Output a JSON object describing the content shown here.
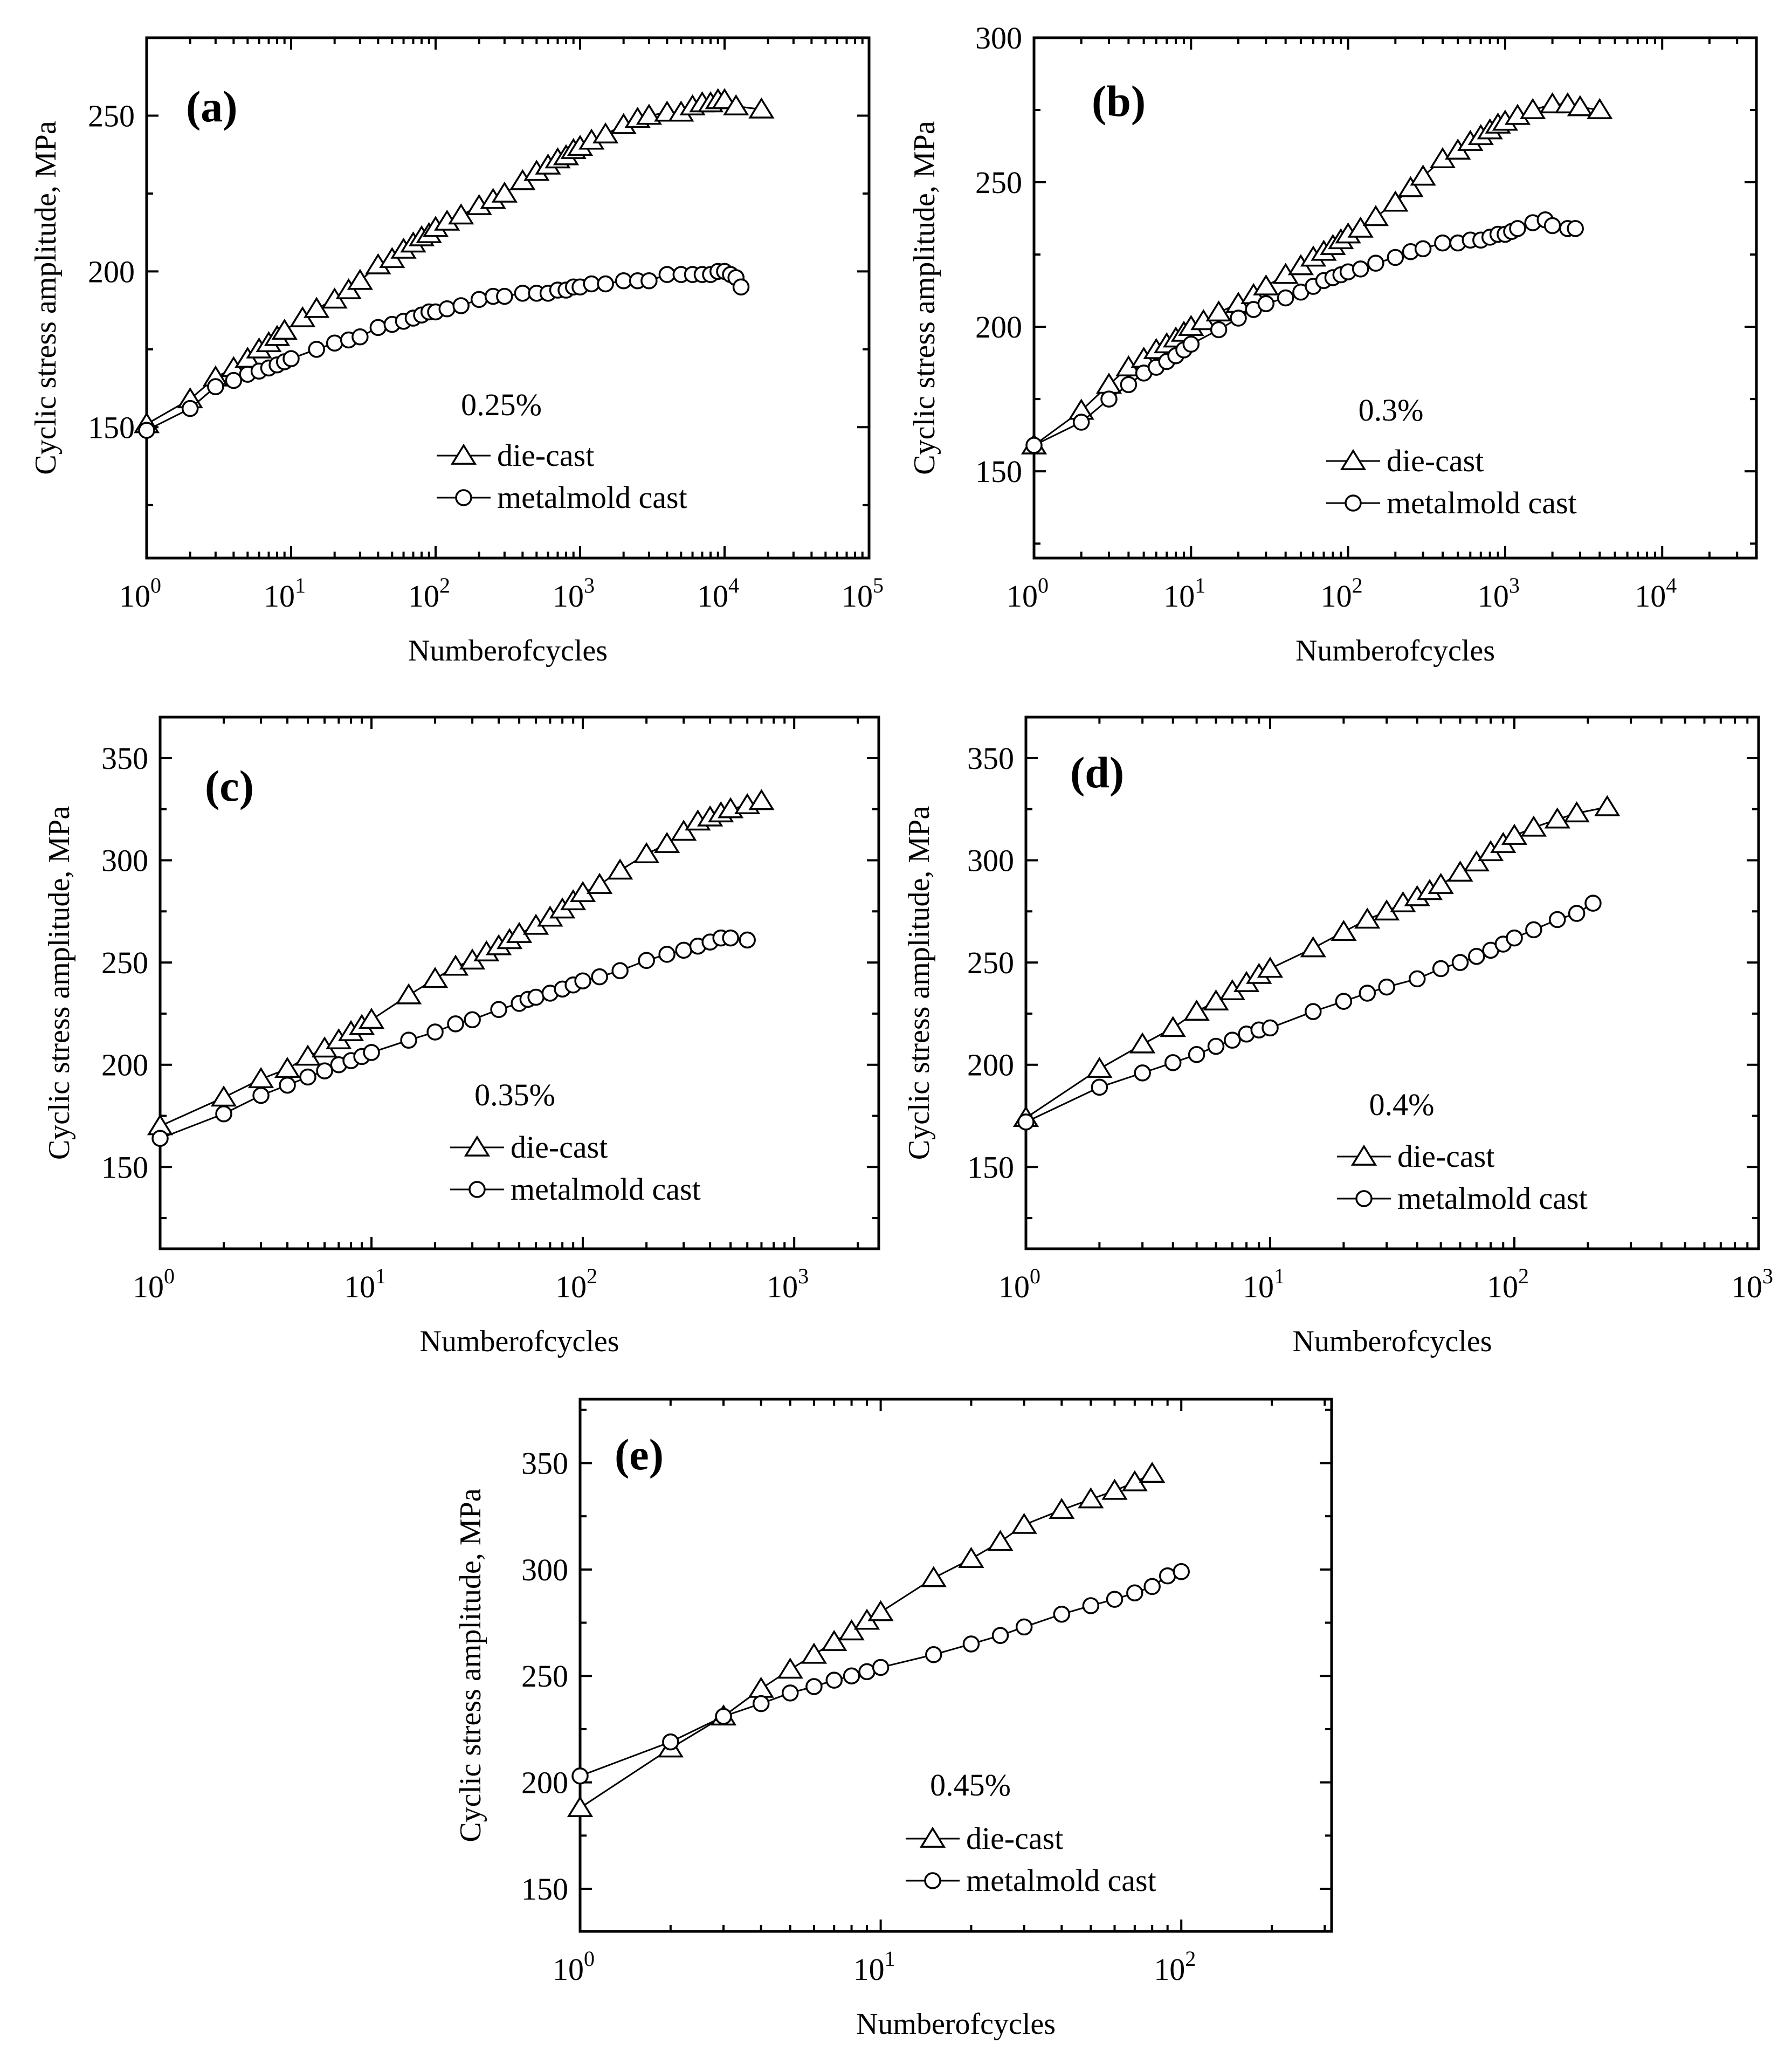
{
  "figure": {
    "panels": [
      {
        "label": "(a)",
        "strain": "0.25%",
        "ylabel": "Cyclic stress amplitude, MPa",
        "xlabel": "Numberofcycles",
        "yticks": [
          150,
          200,
          250
        ],
        "xticks": [
          0,
          1,
          2,
          3,
          4,
          5
        ],
        "xlim": [
          0,
          5
        ],
        "ylim": [
          108,
          275
        ]
      },
      {
        "label": "(b)",
        "strain": "0.3%",
        "ylabel": "Cyclic stress amplitude, MPa",
        "xlabel": "Numberofcycles",
        "yticks": [
          150,
          200,
          250,
          300
        ],
        "xticks": [
          0,
          1,
          2,
          3,
          4
        ],
        "xlim": [
          0,
          4.6
        ],
        "ylim": [
          120,
          300
        ]
      },
      {
        "label": "(c)",
        "strain": "0.35%",
        "ylabel": "Cyclic stress amplitude, MPa",
        "xlabel": "Numberofcycles",
        "yticks": [
          150,
          200,
          250,
          300,
          350
        ],
        "xticks": [
          0,
          1,
          2,
          3
        ],
        "xlim": [
          0,
          3.4
        ],
        "ylim": [
          110,
          370
        ]
      },
      {
        "label": "(d)",
        "strain": "0.4%",
        "ylabel": "Cyclic stress amplitude, MPa",
        "xlabel": "Numberofcycles",
        "yticks": [
          150,
          200,
          250,
          300,
          350
        ],
        "xticks": [
          0,
          1,
          2,
          3
        ],
        "xlim": [
          0,
          3
        ],
        "ylim": [
          110,
          370
        ]
      },
      {
        "label": "(e)",
        "strain": "0.45%",
        "ylabel": "Cyclic stress amplitude, MPa",
        "xlabel": "Numberofcycles",
        "yticks": [
          150,
          200,
          250,
          300,
          350
        ],
        "xticks": [
          0,
          1,
          2
        ],
        "xlim": [
          0,
          2.5
        ],
        "ylim": [
          130,
          380
        ]
      }
    ]
  },
  "legend": {
    "die_cast": "die-cast",
    "metal_mold_cast": "metalmold cast"
  },
  "chart_data": [
    {
      "type": "scatter",
      "title": "(a) 0.25%",
      "xscale": "log",
      "xlabel": "Numberofcycles",
      "ylabel": "Cyclic stress amplitude, MPa",
      "xlim": [
        1,
        100000
      ],
      "ylim": [
        108,
        275
      ],
      "series": [
        {
          "name": "die-cast",
          "marker": "triangle",
          "x": [
            1,
            2,
            3,
            4,
            5,
            6,
            7,
            8,
            9,
            12,
            15,
            20,
            25,
            30,
            40,
            50,
            60,
            70,
            80,
            90,
            100,
            120,
            150,
            200,
            250,
            300,
            400,
            500,
            600,
            700,
            800,
            900,
            1000,
            1200,
            1500,
            2000,
            2500,
            3000,
            4000,
            5000,
            6000,
            7000,
            8000,
            9000,
            10000,
            12000,
            18000
          ],
          "y": [
            151,
            159,
            166,
            169,
            172,
            175,
            177,
            179,
            181,
            185,
            188,
            191,
            194,
            197,
            202,
            204,
            207,
            209,
            211,
            212,
            214,
            216,
            218,
            221,
            223,
            225,
            229,
            232,
            234,
            236,
            237,
            239,
            240,
            242,
            244,
            247,
            249,
            250,
            251,
            251,
            253,
            254,
            254,
            255,
            255,
            253,
            252
          ]
        },
        {
          "name": "metalmold cast",
          "marker": "circle",
          "x": [
            1,
            2,
            3,
            4,
            5,
            6,
            7,
            8,
            9,
            10,
            15,
            20,
            25,
            30,
            40,
            50,
            60,
            70,
            80,
            90,
            100,
            120,
            150,
            200,
            250,
            300,
            400,
            500,
            600,
            700,
            800,
            900,
            1000,
            1200,
            1500,
            2000,
            2500,
            3000,
            4000,
            5000,
            6000,
            7000,
            8000,
            9000,
            10000,
            11000,
            12000,
            13000
          ],
          "y": [
            149,
            156,
            163,
            165,
            167,
            168,
            169,
            170,
            171,
            172,
            175,
            177,
            178,
            179,
            182,
            183,
            184,
            185,
            186,
            187,
            187,
            188,
            189,
            191,
            192,
            192,
            193,
            193,
            193,
            194,
            194,
            195,
            195,
            196,
            196,
            197,
            197,
            197,
            199,
            199,
            199,
            199,
            199,
            200,
            200,
            199,
            198,
            195
          ]
        }
      ]
    },
    {
      "type": "scatter",
      "title": "(b) 0.3%",
      "xscale": "log",
      "xlabel": "Numberofcycles",
      "ylabel": "Cyclic stress amplitude, MPa",
      "xlim": [
        1,
        40000
      ],
      "ylim": [
        120,
        300
      ],
      "series": [
        {
          "name": "die-cast",
          "marker": "triangle",
          "x": [
            1,
            2,
            3,
            4,
            5,
            6,
            7,
            8,
            9,
            10,
            12,
            15,
            20,
            25,
            30,
            40,
            50,
            60,
            70,
            80,
            90,
            100,
            120,
            150,
            200,
            250,
            300,
            400,
            500,
            600,
            700,
            800,
            900,
            1000,
            1200,
            1500,
            2000,
            2500,
            3000,
            4000
          ],
          "y": [
            159,
            171,
            180,
            186,
            189,
            192,
            194,
            196,
            198,
            200,
            202,
            205,
            208,
            211,
            214,
            218,
            221,
            224,
            226,
            228,
            230,
            232,
            234,
            238,
            243,
            248,
            252,
            258,
            261,
            264,
            266,
            268,
            270,
            271,
            273,
            275,
            277,
            277,
            276,
            275
          ]
        },
        {
          "name": "metalmold cast",
          "marker": "circle",
          "x": [
            1,
            2,
            3,
            4,
            5,
            6,
            7,
            8,
            9,
            10,
            15,
            20,
            25,
            30,
            40,
            50,
            60,
            70,
            80,
            90,
            100,
            120,
            150,
            200,
            250,
            300,
            400,
            500,
            600,
            700,
            800,
            900,
            1000,
            1100,
            1200,
            1500,
            1800,
            2000,
            2500,
            2800
          ],
          "y": [
            159,
            167,
            175,
            180,
            184,
            186,
            188,
            190,
            192,
            194,
            199,
            203,
            206,
            208,
            210,
            212,
            214,
            216,
            217,
            218,
            219,
            220,
            222,
            224,
            226,
            227,
            229,
            229,
            230,
            230,
            231,
            232,
            232,
            233,
            234,
            236,
            237,
            235,
            234,
            234
          ]
        }
      ]
    },
    {
      "type": "scatter",
      "title": "(c) 0.35%",
      "xscale": "log",
      "xlabel": "Numberofcycles",
      "ylabel": "Cyclic stress amplitude, MPa",
      "xlim": [
        1,
        2500
      ],
      "ylim": [
        110,
        370
      ],
      "series": [
        {
          "name": "die-cast",
          "marker": "triangle",
          "x": [
            1,
            2,
            3,
            4,
            5,
            6,
            7,
            8,
            9,
            10,
            15,
            20,
            25,
            30,
            35,
            40,
            45,
            50,
            60,
            70,
            80,
            90,
            100,
            120,
            150,
            200,
            250,
            300,
            350,
            400,
            450,
            500,
            600,
            700
          ],
          "y": [
            170,
            184,
            193,
            198,
            204,
            208,
            212,
            216,
            219,
            222,
            234,
            242,
            248,
            251,
            255,
            258,
            261,
            264,
            268,
            272,
            276,
            280,
            284,
            288,
            295,
            303,
            308,
            314,
            319,
            321,
            323,
            325,
            327,
            329
          ]
        },
        {
          "name": "metalmold cast",
          "marker": "circle",
          "x": [
            1,
            2,
            3,
            4,
            5,
            6,
            7,
            8,
            9,
            10,
            15,
            20,
            25,
            30,
            40,
            50,
            55,
            60,
            70,
            80,
            90,
            100,
            120,
            150,
            200,
            250,
            300,
            350,
            400,
            450,
            500,
            600
          ],
          "y": [
            164,
            176,
            185,
            190,
            194,
            197,
            200,
            202,
            204,
            206,
            212,
            216,
            220,
            222,
            227,
            230,
            232,
            233,
            235,
            237,
            239,
            241,
            243,
            246,
            251,
            254,
            256,
            258,
            260,
            262,
            262,
            261
          ]
        }
      ]
    },
    {
      "type": "scatter",
      "title": "(d) 0.4%",
      "xscale": "log",
      "xlabel": "Numberofcycles",
      "ylabel": "Cyclic stress amplitude, MPa",
      "xlim": [
        1,
        1000
      ],
      "ylim": [
        110,
        370
      ],
      "series": [
        {
          "name": "die-cast",
          "marker": "triangle",
          "x": [
            1,
            2,
            3,
            4,
            5,
            6,
            7,
            8,
            9,
            10,
            15,
            20,
            25,
            30,
            35,
            40,
            45,
            50,
            60,
            70,
            80,
            90,
            100,
            120,
            150,
            180,
            240
          ],
          "y": [
            174,
            198,
            210,
            218,
            226,
            231,
            236,
            240,
            244,
            247,
            257,
            265,
            271,
            275,
            279,
            282,
            285,
            288,
            294,
            299,
            304,
            308,
            312,
            316,
            320,
            323,
            326
          ]
        },
        {
          "name": "metalmold cast",
          "marker": "circle",
          "x": [
            1,
            2,
            3,
            4,
            5,
            6,
            7,
            8,
            9,
            10,
            15,
            20,
            25,
            30,
            40,
            50,
            60,
            70,
            80,
            90,
            100,
            120,
            150,
            180,
            210
          ],
          "y": [
            172,
            189,
            196,
            201,
            205,
            209,
            212,
            215,
            217,
            218,
            226,
            231,
            235,
            238,
            242,
            247,
            250,
            253,
            256,
            259,
            262,
            266,
            271,
            274,
            279
          ]
        }
      ]
    },
    {
      "type": "scatter",
      "title": "(e) 0.45%",
      "xscale": "log",
      "xlabel": "Numberofcycles",
      "ylabel": "Cyclic stress amplitude, MPa",
      "xlim": [
        1,
        320
      ],
      "ylim": [
        130,
        380
      ],
      "series": [
        {
          "name": "die-cast",
          "marker": "triangle",
          "x": [
            1,
            2,
            3,
            4,
            5,
            6,
            7,
            8,
            9,
            10,
            15,
            20,
            25,
            30,
            40,
            50,
            60,
            70,
            80
          ],
          "y": [
            188,
            216,
            231,
            244,
            253,
            260,
            266,
            271,
            276,
            280,
            296,
            305,
            313,
            321,
            328,
            333,
            337,
            341,
            345
          ]
        },
        {
          "name": "metalmold cast",
          "marker": "circle",
          "x": [
            1,
            2,
            3,
            4,
            5,
            6,
            7,
            8,
            9,
            10,
            15,
            20,
            25,
            30,
            40,
            50,
            60,
            70,
            80,
            90,
            100
          ],
          "y": [
            203,
            219,
            231,
            237,
            242,
            245,
            248,
            250,
            252,
            254,
            260,
            265,
            269,
            273,
            279,
            283,
            286,
            289,
            292,
            297,
            299
          ]
        }
      ]
    }
  ]
}
